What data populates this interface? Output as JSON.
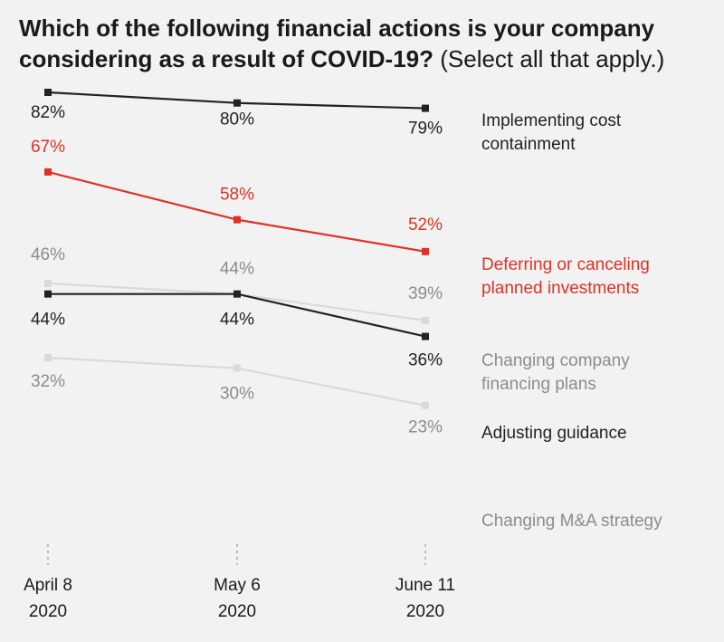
{
  "title": {
    "bold": "Which of the following financial actions is your company considering as a result of COVID-19?",
    "normal": "(Select all that apply.)"
  },
  "colors": {
    "background": "#f2f2f2",
    "black": "#222222",
    "red": "#e03127",
    "light_gray_line": "#dadada",
    "gray_text": "#8c8c8c",
    "axis_dash": "#aaaaaa"
  },
  "chart_data": {
    "type": "line",
    "x": [
      "April 8 2020",
      "May 6 2020",
      "June 11 2020"
    ],
    "x_tick_lines": [
      [
        "April 8",
        "2020"
      ],
      [
        "May 6",
        "2020"
      ],
      [
        "June 11",
        "2020"
      ]
    ],
    "unit": "%",
    "grid": false,
    "legend": "right-side direct labels",
    "series": [
      {
        "name": "Implementing cost containment",
        "label_lines": [
          "Implementing cost",
          "containment"
        ],
        "values": [
          82,
          80,
          79
        ],
        "value_labels": [
          "82%",
          "80%",
          "79%"
        ],
        "color": "black"
      },
      {
        "name": "Deferring or canceling planned investments",
        "label_lines": [
          "Deferring or canceling",
          "planned investments"
        ],
        "values": [
          67,
          58,
          52
        ],
        "value_labels": [
          "67%",
          "58%",
          "52%"
        ],
        "color": "red"
      },
      {
        "name": "Changing company financing plans",
        "label_lines": [
          "Changing company",
          "financing plans"
        ],
        "values": [
          46,
          44,
          39
        ],
        "value_labels": [
          "46%",
          "44%",
          "39%"
        ],
        "color": "gray"
      },
      {
        "name": "Adjusting guidance",
        "label_lines": [
          "Adjusting guidance"
        ],
        "values": [
          44,
          44,
          36
        ],
        "value_labels": [
          "44%",
          "44%",
          "36%"
        ],
        "color": "black"
      },
      {
        "name": "Changing M&A strategy",
        "label_lines": [
          "Changing M&A strategy"
        ],
        "values": [
          32,
          30,
          23
        ],
        "value_labels": [
          "32%",
          "30%",
          "23%"
        ],
        "color": "gray"
      }
    ]
  }
}
